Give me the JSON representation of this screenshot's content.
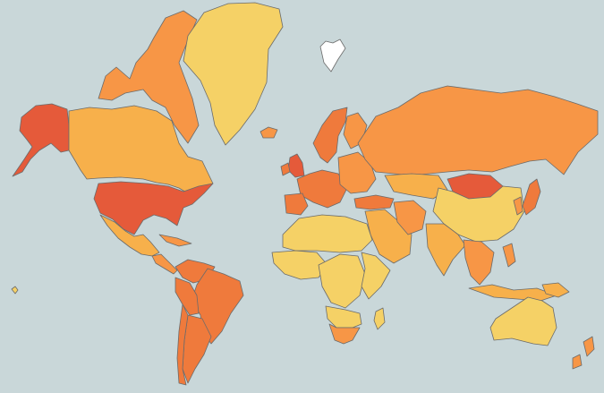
{
  "map": {
    "type": "choropleth",
    "projection": "mercator",
    "colors": {
      "ocean": "#c9d7d9",
      "border": "#6b6b6b",
      "no_data": "#ffffff",
      "tier1": "#f5d166",
      "tier2": "#f7b04b",
      "tier3": "#f79646",
      "tier4": "#ef7a3c",
      "tier5": "#e55a3a"
    },
    "regions": [
      {
        "name": "alaska",
        "tier": "tier5"
      },
      {
        "name": "canada",
        "tier": "tier2"
      },
      {
        "name": "arctic-islands",
        "tier": "tier3"
      },
      {
        "name": "greenland",
        "tier": "tier1"
      },
      {
        "name": "iceland",
        "tier": "tier3"
      },
      {
        "name": "svalbard",
        "tier": "no_data"
      },
      {
        "name": "united-states",
        "tier": "tier5"
      },
      {
        "name": "mexico",
        "tier": "tier2"
      },
      {
        "name": "cuba",
        "tier": "tier3"
      },
      {
        "name": "central-america",
        "tier": "tier3"
      },
      {
        "name": "colombia-venezuela",
        "tier": "tier4"
      },
      {
        "name": "brazil",
        "tier": "tier4"
      },
      {
        "name": "peru-bolivia",
        "tier": "tier4"
      },
      {
        "name": "argentina",
        "tier": "tier4"
      },
      {
        "name": "chile",
        "tier": "tier4"
      },
      {
        "name": "united-kingdom",
        "tier": "tier5"
      },
      {
        "name": "ireland",
        "tier": "tier4"
      },
      {
        "name": "scandinavia",
        "tier": "tier4"
      },
      {
        "name": "finland",
        "tier": "tier3"
      },
      {
        "name": "western-europe",
        "tier": "tier4"
      },
      {
        "name": "iberia",
        "tier": "tier4"
      },
      {
        "name": "eastern-europe",
        "tier": "tier3"
      },
      {
        "name": "russia",
        "tier": "tier3"
      },
      {
        "name": "kazakhstan",
        "tier": "tier2"
      },
      {
        "name": "turkey",
        "tier": "tier4"
      },
      {
        "name": "middle-east",
        "tier": "tier2"
      },
      {
        "name": "iran",
        "tier": "tier3"
      },
      {
        "name": "mongolia",
        "tier": "tier5"
      },
      {
        "name": "china",
        "tier": "tier1"
      },
      {
        "name": "india",
        "tier": "tier2"
      },
      {
        "name": "southeast-asia",
        "tier": "tier3"
      },
      {
        "name": "japan",
        "tier": "tier4"
      },
      {
        "name": "korea",
        "tier": "tier3"
      },
      {
        "name": "indonesia",
        "tier": "tier2"
      },
      {
        "name": "philippines",
        "tier": "tier3"
      },
      {
        "name": "papua-new-guinea",
        "tier": "tier2"
      },
      {
        "name": "north-africa",
        "tier": "tier1"
      },
      {
        "name": "west-africa",
        "tier": "tier1"
      },
      {
        "name": "central-africa",
        "tier": "tier1"
      },
      {
        "name": "east-africa",
        "tier": "tier1"
      },
      {
        "name": "southern-africa",
        "tier": "tier1"
      },
      {
        "name": "south-africa",
        "tier": "tier3"
      },
      {
        "name": "madagascar",
        "tier": "tier1"
      },
      {
        "name": "australia",
        "tier": "tier1"
      },
      {
        "name": "new-zealand",
        "tier": "tier3"
      },
      {
        "name": "hawaii",
        "tier": "tier1"
      }
    ]
  }
}
